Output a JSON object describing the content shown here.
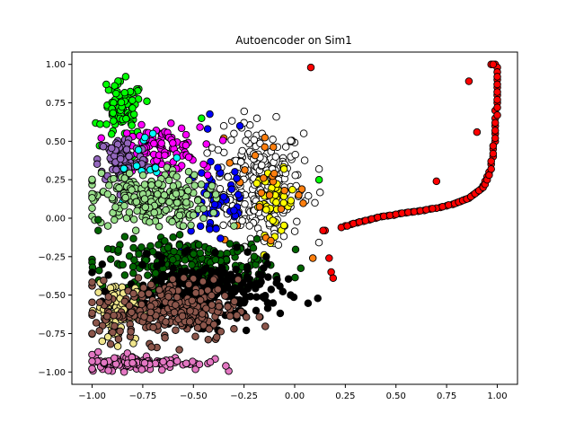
{
  "chart_data": {
    "type": "scatter",
    "title": "Autoencoder on Sim1",
    "xlabel": "",
    "ylabel": "",
    "xlim": [
      -1.1,
      1.1
    ],
    "ylim": [
      -1.08,
      1.08
    ],
    "xticks": [
      -1.0,
      -0.75,
      -0.5,
      -0.25,
      0.0,
      0.25,
      0.5,
      0.75,
      1.0
    ],
    "xtick_labels": [
      "−1.00",
      "−0.75",
      "−0.50",
      "−0.25",
      "0.00",
      "0.25",
      "0.50",
      "0.75",
      "1.00"
    ],
    "yticks": [
      -1.0,
      -0.75,
      -0.5,
      -0.25,
      0.0,
      0.25,
      0.5,
      0.75,
      1.0
    ],
    "ytick_labels": [
      "−1.00",
      "−0.75",
      "−0.50",
      "−0.25",
      "0.00",
      "0.25",
      "0.50",
      "0.75",
      "1.00"
    ],
    "grid": false,
    "legend": "none",
    "marker": "circle with black edge",
    "series": [
      {
        "color": "#ffffff",
        "cx": -0.18,
        "cy": 0.22,
        "sx": 0.11,
        "sy": 0.19,
        "n": 260,
        "points": [
          [
            -0.35,
            0.6
          ],
          [
            -0.3,
            0.55
          ],
          [
            -0.25,
            0.62
          ],
          [
            -0.08,
            0.25
          ],
          [
            -0.05,
            0.35
          ],
          [
            0.12,
            0.32
          ],
          [
            -0.1,
            -0.1
          ],
          [
            -0.15,
            -0.15
          ],
          [
            -0.05,
            -0.05
          ],
          [
            0.1,
            0.1
          ],
          [
            -0.2,
            0.05
          ],
          [
            -0.35,
            0.15
          ]
        ]
      },
      {
        "color": "#ffff00",
        "cx": -0.1,
        "cy": 0.1,
        "sx": 0.05,
        "sy": 0.1,
        "n": 45,
        "points": []
      },
      {
        "color": "#ff7f0e",
        "cx": -0.18,
        "cy": 0.15,
        "sx": 0.12,
        "sy": 0.16,
        "n": 22,
        "points": [
          [
            -0.05,
            0.18
          ],
          [
            0.02,
            0.15
          ],
          [
            -0.35,
            0.52
          ]
        ]
      },
      {
        "color": "#0000ff",
        "cx": -0.38,
        "cy": 0.12,
        "sx": 0.09,
        "sy": 0.17,
        "n": 50,
        "points": [
          [
            -0.43,
            0.58
          ],
          [
            -0.27,
            0.6
          ],
          [
            -0.3,
            0.05
          ]
        ]
      },
      {
        "color": "#00ff00",
        "cx": -0.85,
        "cy": 0.7,
        "sx": 0.05,
        "sy": 0.09,
        "n": 85,
        "points": [
          [
            -0.93,
            0.87
          ],
          [
            -0.46,
            0.65
          ],
          [
            0.12,
            0.25
          ],
          [
            -0.8,
            0.4
          ],
          [
            -0.75,
            0.48
          ]
        ]
      },
      {
        "color": "#ff00ff",
        "cx": -0.67,
        "cy": 0.45,
        "sx": 0.1,
        "sy": 0.07,
        "n": 110,
        "points": [
          [
            -0.45,
            0.35
          ],
          [
            -0.43,
            0.28
          ]
        ]
      },
      {
        "color": "#9467bd",
        "cx": -0.85,
        "cy": 0.38,
        "sx": 0.06,
        "sy": 0.08,
        "n": 90,
        "points": []
      },
      {
        "color": "#00ffff",
        "cx": -0.73,
        "cy": 0.3,
        "sx": 0.1,
        "sy": 0.12,
        "n": 14,
        "points": [
          [
            -0.78,
            0.34
          ],
          [
            -0.7,
            0.55
          ]
        ]
      },
      {
        "color": "#98df8a",
        "cx": -0.72,
        "cy": 0.12,
        "sx": 0.14,
        "sy": 0.09,
        "n": 230,
        "points": [
          [
            -0.5,
            0.02
          ],
          [
            -0.45,
            0.0
          ],
          [
            -0.55,
            -0.05
          ],
          [
            -0.3,
            -0.05
          ]
        ]
      },
      {
        "color": "#006400",
        "cx": -0.52,
        "cy": -0.3,
        "sx": 0.2,
        "sy": 0.08,
        "n": 260,
        "points": [
          [
            -0.97,
            -0.01
          ],
          [
            -0.97,
            -0.08
          ],
          [
            -0.2,
            -0.25
          ],
          [
            -0.22,
            -0.4
          ],
          [
            -0.25,
            -0.45
          ]
        ]
      },
      {
        "color": "#000000",
        "cx": -0.45,
        "cy": -0.48,
        "sx": 0.19,
        "sy": 0.1,
        "n": 260,
        "points": [
          [
            -0.92,
            -0.37
          ],
          [
            -0.95,
            -0.3
          ],
          [
            -0.85,
            -0.45
          ],
          [
            -0.25,
            -0.55
          ],
          [
            -0.3,
            -0.62
          ]
        ]
      },
      {
        "color": "#f0e68c",
        "cx": -0.88,
        "cy": -0.6,
        "sx": 0.05,
        "sy": 0.1,
        "n": 80,
        "points": [
          [
            -0.96,
            -0.42
          ],
          [
            -0.95,
            -0.8
          ],
          [
            -0.66,
            -0.68
          ]
        ]
      },
      {
        "color": "#8c564b",
        "cx": -0.62,
        "cy": -0.6,
        "sx": 0.17,
        "sy": 0.1,
        "n": 260,
        "points": [
          [
            -0.98,
            -0.68
          ],
          [
            -0.3,
            -0.72
          ],
          [
            -0.4,
            -0.4
          ]
        ]
      },
      {
        "color": "#e377c2",
        "cx": -0.75,
        "cy": -0.94,
        "sx": 0.15,
        "sy": 0.025,
        "n": 120,
        "points": [
          [
            -0.97,
            -0.87
          ],
          [
            -0.47,
            -0.95
          ],
          [
            -0.92,
            -0.99
          ]
        ]
      },
      {
        "color": "#ff0000",
        "cx": 0,
        "cy": 0,
        "sx": 0,
        "sy": 0,
        "n": 0,
        "points": [
          [
            0.17,
            -0.26
          ],
          [
            0.18,
            -0.35
          ],
          [
            0.19,
            -0.39
          ],
          [
            0.15,
            -0.08
          ],
          [
            0.14,
            -0.08
          ],
          [
            0.08,
            0.98
          ],
          [
            0.7,
            0.24
          ],
          [
            0.86,
            0.89
          ],
          [
            0.9,
            0.56
          ],
          [
            0.97,
            1.0
          ],
          [
            0.99,
            1.0
          ],
          [
            1.0,
            0.98
          ],
          [
            1.0,
            0.95
          ],
          [
            1.0,
            0.9
          ],
          [
            1.0,
            0.85
          ],
          [
            1.0,
            0.8
          ],
          [
            1.0,
            0.75
          ],
          [
            0.99,
            0.7
          ],
          [
            0.99,
            0.65
          ],
          [
            0.99,
            0.6
          ],
          [
            0.99,
            0.55
          ],
          [
            0.99,
            0.5
          ],
          [
            0.98,
            0.45
          ],
          [
            0.98,
            0.4
          ],
          [
            0.97,
            0.35
          ],
          [
            0.96,
            0.3
          ],
          [
            0.95,
            0.27
          ],
          [
            0.94,
            0.24
          ],
          [
            0.93,
            0.21
          ],
          [
            0.92,
            0.19
          ],
          [
            0.9,
            0.17
          ],
          [
            0.88,
            0.15
          ],
          [
            0.86,
            0.13
          ],
          [
            0.84,
            0.12
          ],
          [
            0.82,
            0.11
          ],
          [
            0.8,
            0.1
          ],
          [
            0.78,
            0.09
          ],
          [
            0.75,
            0.08
          ],
          [
            0.72,
            0.07
          ],
          [
            0.7,
            0.065
          ],
          [
            0.67,
            0.06
          ],
          [
            0.64,
            0.05
          ],
          [
            0.61,
            0.045
          ],
          [
            0.58,
            0.04
          ],
          [
            0.55,
            0.035
          ],
          [
            0.52,
            0.03
          ],
          [
            0.49,
            0.02
          ],
          [
            0.46,
            0.015
          ],
          [
            0.43,
            0.01
          ],
          [
            0.4,
            0.0
          ],
          [
            0.37,
            -0.01
          ],
          [
            0.34,
            -0.02
          ],
          [
            0.31,
            -0.03
          ],
          [
            0.28,
            -0.04
          ],
          [
            0.25,
            -0.05
          ],
          [
            0.23,
            -0.06
          ],
          [
            0.26,
            -0.05
          ],
          [
            0.29,
            -0.035
          ],
          [
            0.32,
            -0.025
          ],
          [
            0.35,
            -0.015
          ],
          [
            0.38,
            -0.005
          ],
          [
            0.41,
            0.005
          ],
          [
            0.44,
            0.012
          ],
          [
            0.47,
            0.018
          ],
          [
            0.5,
            0.025
          ],
          [
            0.53,
            0.032
          ],
          [
            0.56,
            0.038
          ],
          [
            0.59,
            0.042
          ],
          [
            0.62,
            0.048
          ],
          [
            0.65,
            0.055
          ],
          [
            0.68,
            0.062
          ],
          [
            0.73,
            0.075
          ],
          [
            0.76,
            0.085
          ],
          [
            0.79,
            0.095
          ],
          [
            0.81,
            0.105
          ],
          [
            0.83,
            0.115
          ],
          [
            0.85,
            0.125
          ],
          [
            0.87,
            0.14
          ],
          [
            0.89,
            0.16
          ],
          [
            0.91,
            0.18
          ],
          [
            0.93,
            0.2
          ],
          [
            0.94,
            0.22
          ],
          [
            0.95,
            0.25
          ],
          [
            0.96,
            0.28
          ],
          [
            0.97,
            0.32
          ],
          [
            0.97,
            0.37
          ],
          [
            0.98,
            0.42
          ],
          [
            0.98,
            0.47
          ],
          [
            0.99,
            0.52
          ],
          [
            0.99,
            0.57
          ],
          [
            0.99,
            0.62
          ],
          [
            1.0,
            0.67
          ],
          [
            1.0,
            0.72
          ],
          [
            1.0,
            0.77
          ],
          [
            1.0,
            0.82
          ],
          [
            1.0,
            0.87
          ],
          [
            1.0,
            0.92
          ],
          [
            0.98,
            1.0
          ]
        ]
      }
    ]
  }
}
